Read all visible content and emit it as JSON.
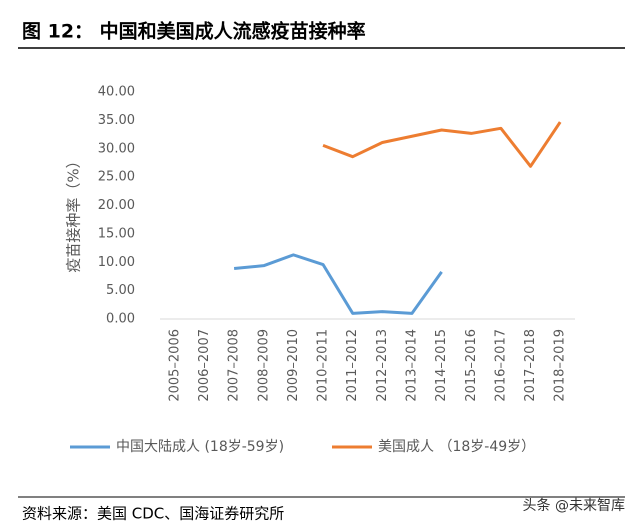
{
  "chart_data": {
    "type": "line",
    "title": "图 12： 中国和美国成人流感疫苗接种率",
    "y_label": "疫苗接种率（%）",
    "categories": [
      "2005–2006",
      "2006–2007",
      "2007–2008",
      "2008–2009",
      "2009–2010",
      "2010–2011",
      "2011–2012",
      "2012–2013",
      "2013–2014",
      "2014–2015",
      "2015–2016",
      "2016–2017",
      "2017–2018",
      "2018–2019"
    ],
    "series": [
      {
        "name": "中国大陆成人 (18岁-59岁)",
        "color": "#5b9bd5",
        "values": [
          null,
          null,
          8.9,
          9.4,
          11.3,
          9.6,
          1.0,
          1.3,
          1.0,
          8.3,
          null,
          null,
          null,
          null
        ]
      },
      {
        "name": "美国成人 （18岁-49岁）",
        "color": "#ed7d31",
        "values": [
          null,
          null,
          null,
          null,
          null,
          30.6,
          28.6,
          31.1,
          32.2,
          33.3,
          32.7,
          33.6,
          26.9,
          34.7
        ]
      }
    ],
    "ylim": [
      0,
      40
    ],
    "yticks": [
      {
        "value": 0,
        "label": "0.00"
      },
      {
        "value": 5,
        "label": "5.00"
      },
      {
        "value": 10,
        "label": "10.00"
      },
      {
        "value": 15,
        "label": "15.00"
      },
      {
        "value": 20,
        "label": "20.00"
      },
      {
        "value": 25,
        "label": "25.00"
      },
      {
        "value": 30,
        "label": "30.00"
      },
      {
        "value": 35,
        "label": "35.00"
      },
      {
        "value": 40,
        "label": "40.00"
      }
    ],
    "grid": false
  },
  "footer": {
    "source": "资料来源：美国 CDC、国海证券研究所",
    "watermark": "头条 @未来智库"
  }
}
